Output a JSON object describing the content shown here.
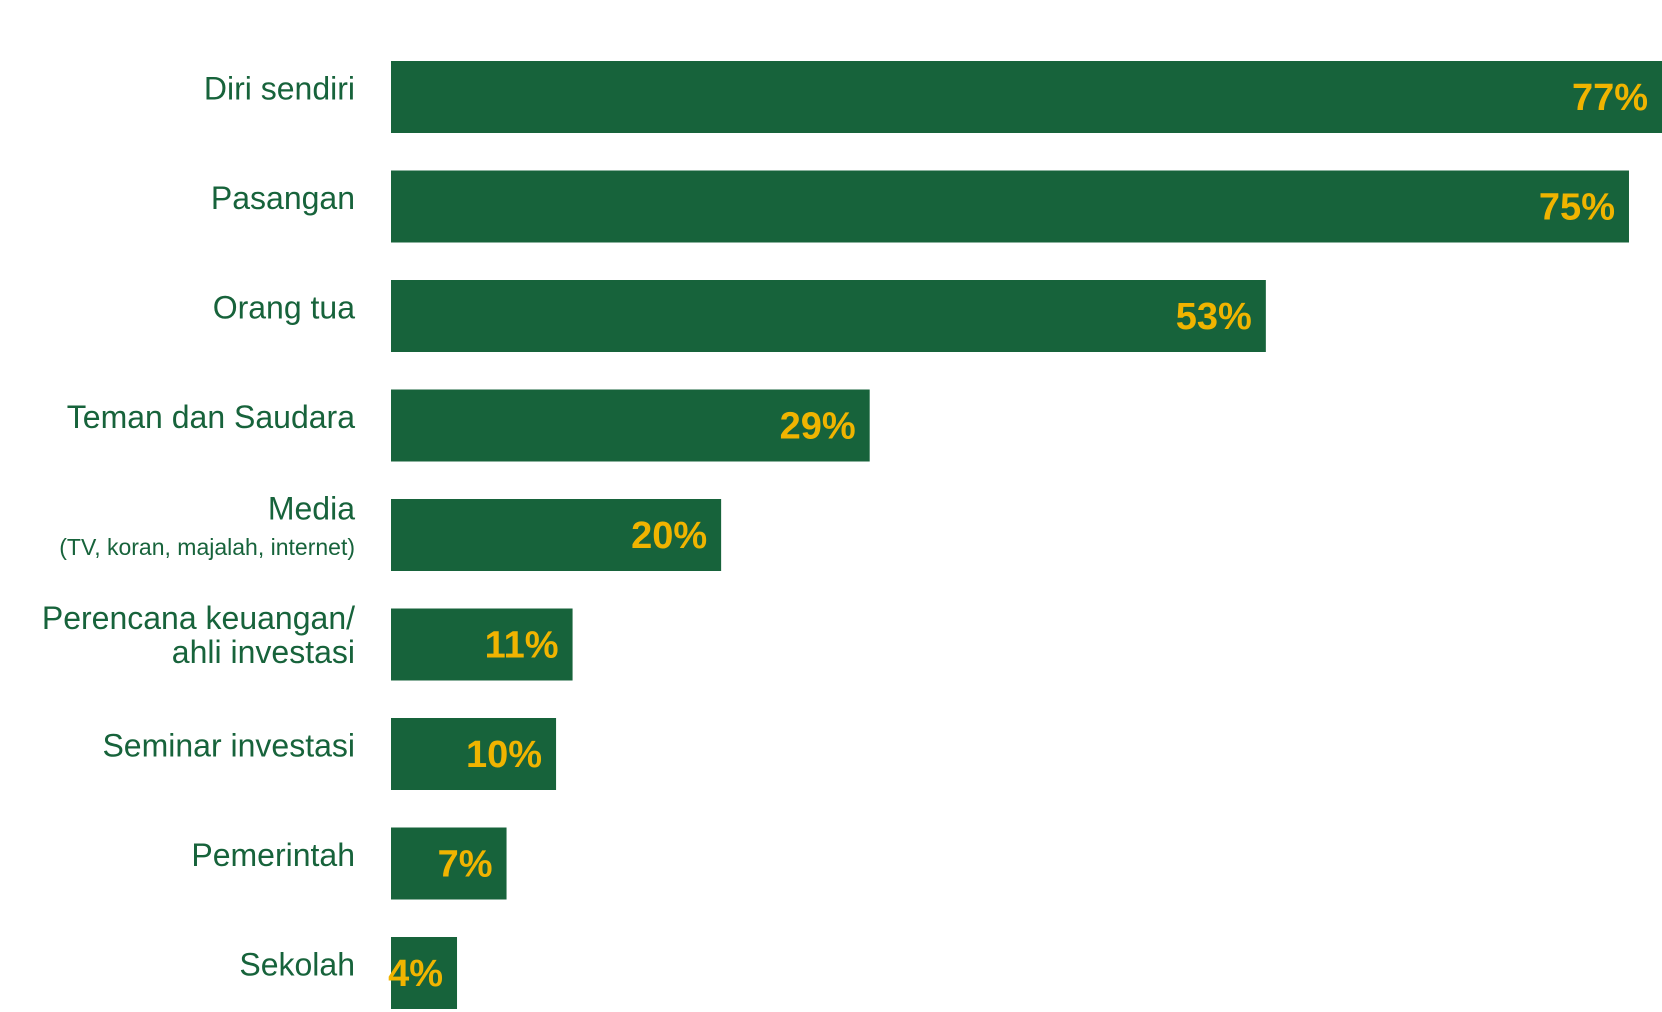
{
  "chart_data": {
    "type": "bar",
    "orientation": "horizontal",
    "categories": [
      [
        "Diri sendiri"
      ],
      [
        "Pasangan"
      ],
      [
        "Orang tua"
      ],
      [
        "Teman dan Saudara"
      ],
      [
        "Media",
        "(TV, koran, majalah, internet)"
      ],
      [
        "Perencana keuangan/",
        "ahli investasi"
      ],
      [
        "Seminar investasi"
      ],
      [
        "Pemerintah"
      ],
      [
        "Sekolah"
      ]
    ],
    "values": [
      77,
      75,
      53,
      29,
      20,
      11,
      10,
      7,
      4
    ],
    "value_labels": [
      "77%",
      "75%",
      "53%",
      "29%",
      "20%",
      "11%",
      "10%",
      "7%",
      "4%"
    ],
    "color": "#17633b",
    "value_label_color": "#f0b400",
    "xlim": [
      0,
      77
    ]
  }
}
